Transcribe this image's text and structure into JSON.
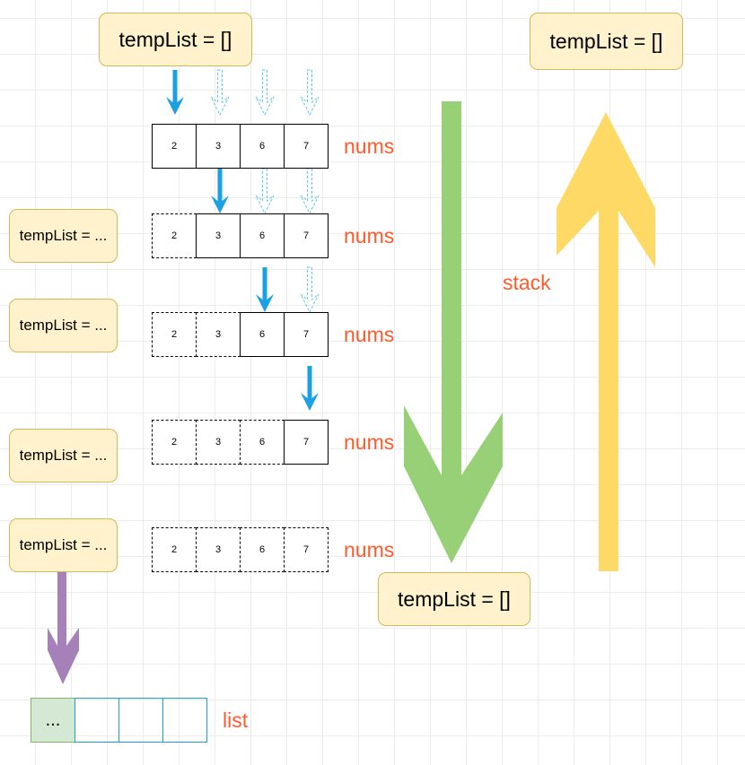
{
  "top_box": "tempList = []",
  "top_right_box": "tempList = []",
  "bottom_box": "tempList = []",
  "side_boxes": [
    "tempList = ...",
    "tempList = ...",
    "tempList = ...",
    "tempList = ..."
  ],
  "rows": [
    {
      "cells": [
        "2",
        "3",
        "6",
        "7"
      ],
      "dashed": [
        false,
        false,
        false,
        false
      ],
      "label": "nums"
    },
    {
      "cells": [
        "2",
        "3",
        "6",
        "7"
      ],
      "dashed": [
        true,
        false,
        false,
        false
      ],
      "label": "nums"
    },
    {
      "cells": [
        "2",
        "3",
        "6",
        "7"
      ],
      "dashed": [
        true,
        true,
        false,
        false
      ],
      "label": "nums"
    },
    {
      "cells": [
        "2",
        "3",
        "6",
        "7"
      ],
      "dashed": [
        true,
        true,
        true,
        false
      ],
      "label": "nums"
    },
    {
      "cells": [
        "2",
        "3",
        "6",
        "7"
      ],
      "dashed": [
        true,
        true,
        true,
        true
      ],
      "label": "nums"
    }
  ],
  "stack_label": "stack",
  "list": {
    "cells": [
      "...",
      "",
      "",
      ""
    ],
    "label": "list"
  },
  "colors": {
    "blue_arrow": "#1ba1e2",
    "green_arrow": "#97d077",
    "yellow_arrow": "#ffd966",
    "purple_arrow": "#a680b8",
    "label": "#ff5a2c",
    "box_fill": "#fff2cc"
  }
}
